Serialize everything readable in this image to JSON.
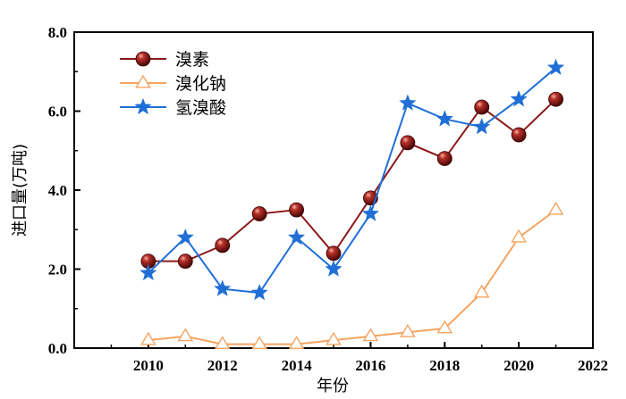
{
  "chart_data": {
    "type": "line",
    "title": "",
    "xlabel": "年份",
    "ylabel": "进口量(万吨)",
    "xlim": [
      2008,
      2022
    ],
    "ylim": [
      0,
      8
    ],
    "x_ticks": [
      2010,
      2012,
      2014,
      2016,
      2018,
      2020,
      2022
    ],
    "x_tick_labels": [
      "2010",
      "2012",
      "2014",
      "2016",
      "2018",
      "2020",
      "2022"
    ],
    "y_ticks": [
      0,
      2,
      4,
      6,
      8
    ],
    "y_tick_labels": [
      "0.0",
      "2.0",
      "4.0",
      "6.0",
      "8.0"
    ],
    "grid": false,
    "legend_position": "top-left",
    "x": [
      2010,
      2011,
      2012,
      2013,
      2014,
      2015,
      2016,
      2017,
      2018,
      2019,
      2020,
      2021
    ],
    "series": [
      {
        "name": "溴素",
        "values": [
          2.2,
          2.2,
          2.6,
          3.4,
          3.5,
          2.4,
          3.8,
          5.2,
          4.8,
          6.1,
          5.4,
          6.3
        ],
        "color": "#8b1a1a",
        "marker": "sphere"
      },
      {
        "name": "溴化钠",
        "values": [
          0.2,
          0.3,
          0.1,
          0.1,
          0.1,
          0.2,
          0.3,
          0.4,
          0.5,
          1.4,
          2.8,
          3.5
        ],
        "color": "#f4a460",
        "marker": "open-triangle"
      },
      {
        "name": "氢溴酸",
        "values": [
          1.9,
          2.8,
          1.5,
          1.4,
          2.8,
          2.0,
          3.4,
          6.2,
          5.8,
          5.6,
          6.3,
          7.1
        ],
        "color": "#1f6fd6",
        "marker": "star"
      }
    ]
  }
}
